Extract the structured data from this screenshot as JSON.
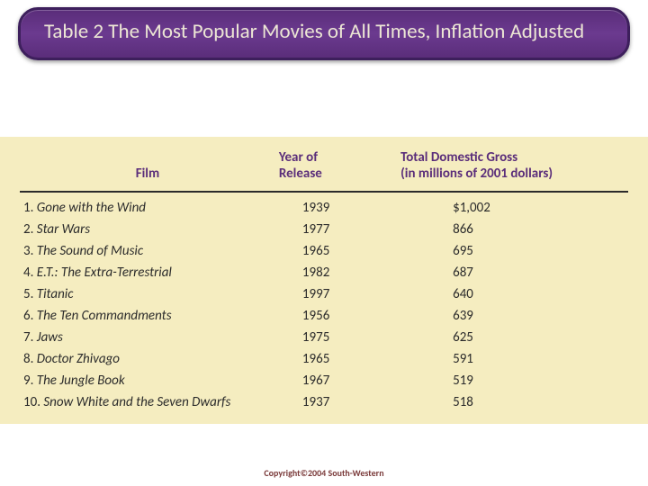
{
  "banner": {
    "title": "Table 2 The Most Popular Movies of All Times, Inflation Adjusted"
  },
  "table": {
    "type": "table",
    "background_color": "#f5edc0",
    "header_color": "#5a2d7a",
    "text_color": "#2b2b2b",
    "rule_color": "#2b2b2b",
    "columns": {
      "film": "Film",
      "year": "Year of Release",
      "gross": "Total Domestic Gross (in millions of 2001 dollars)"
    },
    "rows": [
      {
        "rank": "1.",
        "title": "Gone with the Wind",
        "year": "1939",
        "gross": "$1,002"
      },
      {
        "rank": "2.",
        "title": "Star Wars",
        "year": "1977",
        "gross": "866"
      },
      {
        "rank": "3.",
        "title": "The Sound of Music",
        "year": "1965",
        "gross": "695"
      },
      {
        "rank": "4.",
        "title": "E.T.: The Extra-Terrestrial",
        "year": "1982",
        "gross": "687"
      },
      {
        "rank": "5.",
        "title": "Titanic",
        "year": "1997",
        "gross": "640"
      },
      {
        "rank": "6.",
        "title": "The Ten Commandments",
        "year": "1956",
        "gross": "639"
      },
      {
        "rank": "7.",
        "title": "Jaws",
        "year": "1975",
        "gross": "625"
      },
      {
        "rank": "8.",
        "title": "Doctor Zhivago",
        "year": "1965",
        "gross": "591"
      },
      {
        "rank": "9.",
        "title": "The Jungle Book",
        "year": "1967",
        "gross": "519"
      },
      {
        "rank": "10.",
        "title": "Snow White and the Seven Dwarfs",
        "year": "1937",
        "gross": "518"
      }
    ]
  },
  "footer": {
    "copyright": "Copyright©2004  South-Western"
  }
}
